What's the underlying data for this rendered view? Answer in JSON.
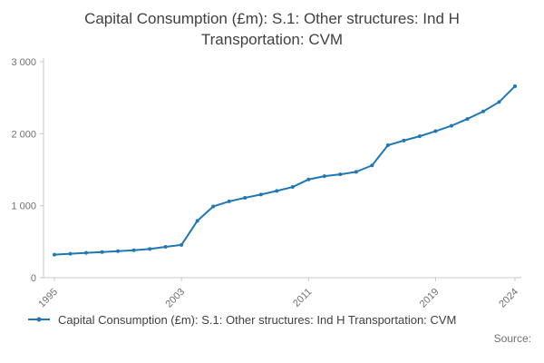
{
  "title": {
    "line1": "Capital Consumption (£m): S.1: Other structures: Ind H",
    "line2": "Transportation: CVM"
  },
  "legend": {
    "label": "Capital Consumption (£m): S.1: Other structures: Ind H Transportation: CVM"
  },
  "source": {
    "label": "Source:"
  },
  "chart_data": {
    "type": "line",
    "title": "Capital Consumption (£m): S.1: Other structures: Ind H Transportation: CVM",
    "x": [
      1995,
      1996,
      1997,
      1998,
      1999,
      2000,
      2001,
      2002,
      2003,
      2004,
      2005,
      2006,
      2007,
      2008,
      2009,
      2010,
      2011,
      2012,
      2013,
      2014,
      2015,
      2016,
      2017,
      2018,
      2019,
      2020,
      2021,
      2022,
      2023,
      2024
    ],
    "series": [
      {
        "name": "Capital Consumption (£m): S.1: Other structures: Ind H Transportation: CVM",
        "values": [
          320,
          332,
          345,
          356,
          368,
          382,
          398,
          428,
          455,
          790,
          990,
          1060,
          1110,
          1155,
          1205,
          1260,
          1365,
          1410,
          1435,
          1470,
          1560,
          1840,
          1905,
          1965,
          2035,
          2110,
          2205,
          2310,
          2440,
          2660
        ]
      }
    ],
    "ylim": [
      0,
      3000
    ],
    "yticks": [
      0,
      1000,
      2000,
      3000
    ],
    "ytick_labels": [
      "0",
      "1 000",
      "2 000",
      "3 000"
    ],
    "xticks": [
      1995,
      2003,
      2011,
      2019,
      2024
    ],
    "line_color": "#1f77b4",
    "axis_color": "#c8c8c8",
    "tick_label_color": "#707070",
    "marker": "circle",
    "grid": false,
    "legend_position": "bottom-left"
  }
}
